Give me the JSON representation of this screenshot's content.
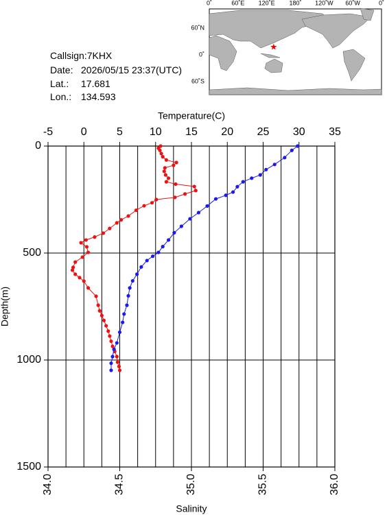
{
  "meta": {
    "callsign": "Callsign:7KHX",
    "date_label": "Date:",
    "date": "2026/05/15 23:37(UTC)",
    "lat_label": "Lat.:",
    "lat": 17.681,
    "lon_label": "Lon.:",
    "lon": 134.593
  },
  "map": {
    "lon_labels": [
      "0˚",
      "60˚E",
      "120˚E",
      "180˚",
      "120˚W",
      "60˚W",
      "0˚"
    ],
    "lat_labels": [
      "60˚N",
      "0˚",
      "60˚S"
    ],
    "marker_color": "#ee0000"
  },
  "chart_data": {
    "type": "profile",
    "x_label": "Temperature(C)",
    "xlim": [
      -5,
      35
    ],
    "xticks": [
      -5,
      0,
      5,
      10,
      15,
      20,
      25,
      30,
      35
    ],
    "xgrid": [
      -2.5,
      0,
      2.5,
      5,
      7.5,
      10,
      12.5,
      15,
      17.5,
      20,
      22.5,
      25,
      27.5,
      30,
      32.5
    ],
    "x2_label": "Salinity",
    "x2lim": [
      34,
      36
    ],
    "x2ticks": [
      {
        "value": 34,
        "label": "34.0"
      },
      34.5,
      {
        "value": 35,
        "label": "35.0"
      },
      35.5,
      {
        "value": 36,
        "label": "36.0"
      }
    ],
    "y_label": "Depth(m)",
    "ylim": [
      0,
      1500
    ],
    "yticks": [
      0,
      500,
      1000,
      1500
    ],
    "grid": true,
    "series": [
      {
        "axis": "x",
        "color": "#ee1111",
        "y": [
          0,
          10,
          20,
          35,
          50,
          65,
          77,
          90,
          102,
          118,
          135,
          150,
          167,
          178,
          189,
          208,
          224,
          240,
          250,
          265,
          279,
          300,
          327,
          345,
          359,
          385,
          407,
          425,
          439,
          452,
          471,
          497,
          519,
          542,
          567,
          580,
          599,
          615,
          631,
          663,
          702,
          744,
          770,
          792,
          815,
          840,
          865,
          888,
          912,
          936,
          960,
          984,
          1010,
          1030,
          1048
        ],
        "x": [
          10.7,
          10.4,
          10.6,
          10.8,
          11.0,
          11.5,
          12.9,
          12.5,
          11.3,
          11.2,
          11.4,
          11.8,
          11.5,
          12.8,
          15.4,
          15.6,
          14.1,
          12.7,
          10.1,
          9.5,
          8.4,
          7.3,
          6.2,
          5.2,
          4.6,
          3.6,
          2.7,
          1.5,
          0.3,
          -0.4,
          0.4,
          0.6,
          -0.2,
          -1.2,
          -1.5,
          -1.6,
          -1.2,
          -0.6,
          0.0,
          0.6,
          1.7,
          2.0,
          2.2,
          2.5,
          2.8,
          3.1,
          3.4,
          3.6,
          3.8,
          4.0,
          4.3,
          4.6,
          4.7,
          4.9,
          5.0
        ]
      },
      {
        "axis": "x2",
        "color": "#1a1aee",
        "y": [
          0,
          20,
          54,
          86,
          110,
          135,
          150,
          167,
          190,
          215,
          230,
          247,
          280,
          311,
          340,
          375,
          405,
          439,
          470,
          497,
          515,
          535,
          565,
          599,
          630,
          663,
          700,
          744,
          785,
          824,
          870,
          920,
          950,
          984,
          1015,
          1048
        ],
        "x": [
          35.74,
          35.7,
          35.65,
          35.58,
          35.52,
          35.48,
          35.42,
          35.36,
          35.32,
          35.29,
          35.24,
          35.17,
          35.11,
          35.05,
          34.99,
          34.93,
          34.88,
          34.84,
          34.8,
          34.77,
          34.73,
          34.69,
          34.65,
          34.62,
          34.59,
          34.57,
          34.56,
          34.55,
          34.53,
          34.52,
          34.5,
          34.48,
          34.46,
          34.45,
          34.44,
          34.44
        ]
      }
    ]
  }
}
